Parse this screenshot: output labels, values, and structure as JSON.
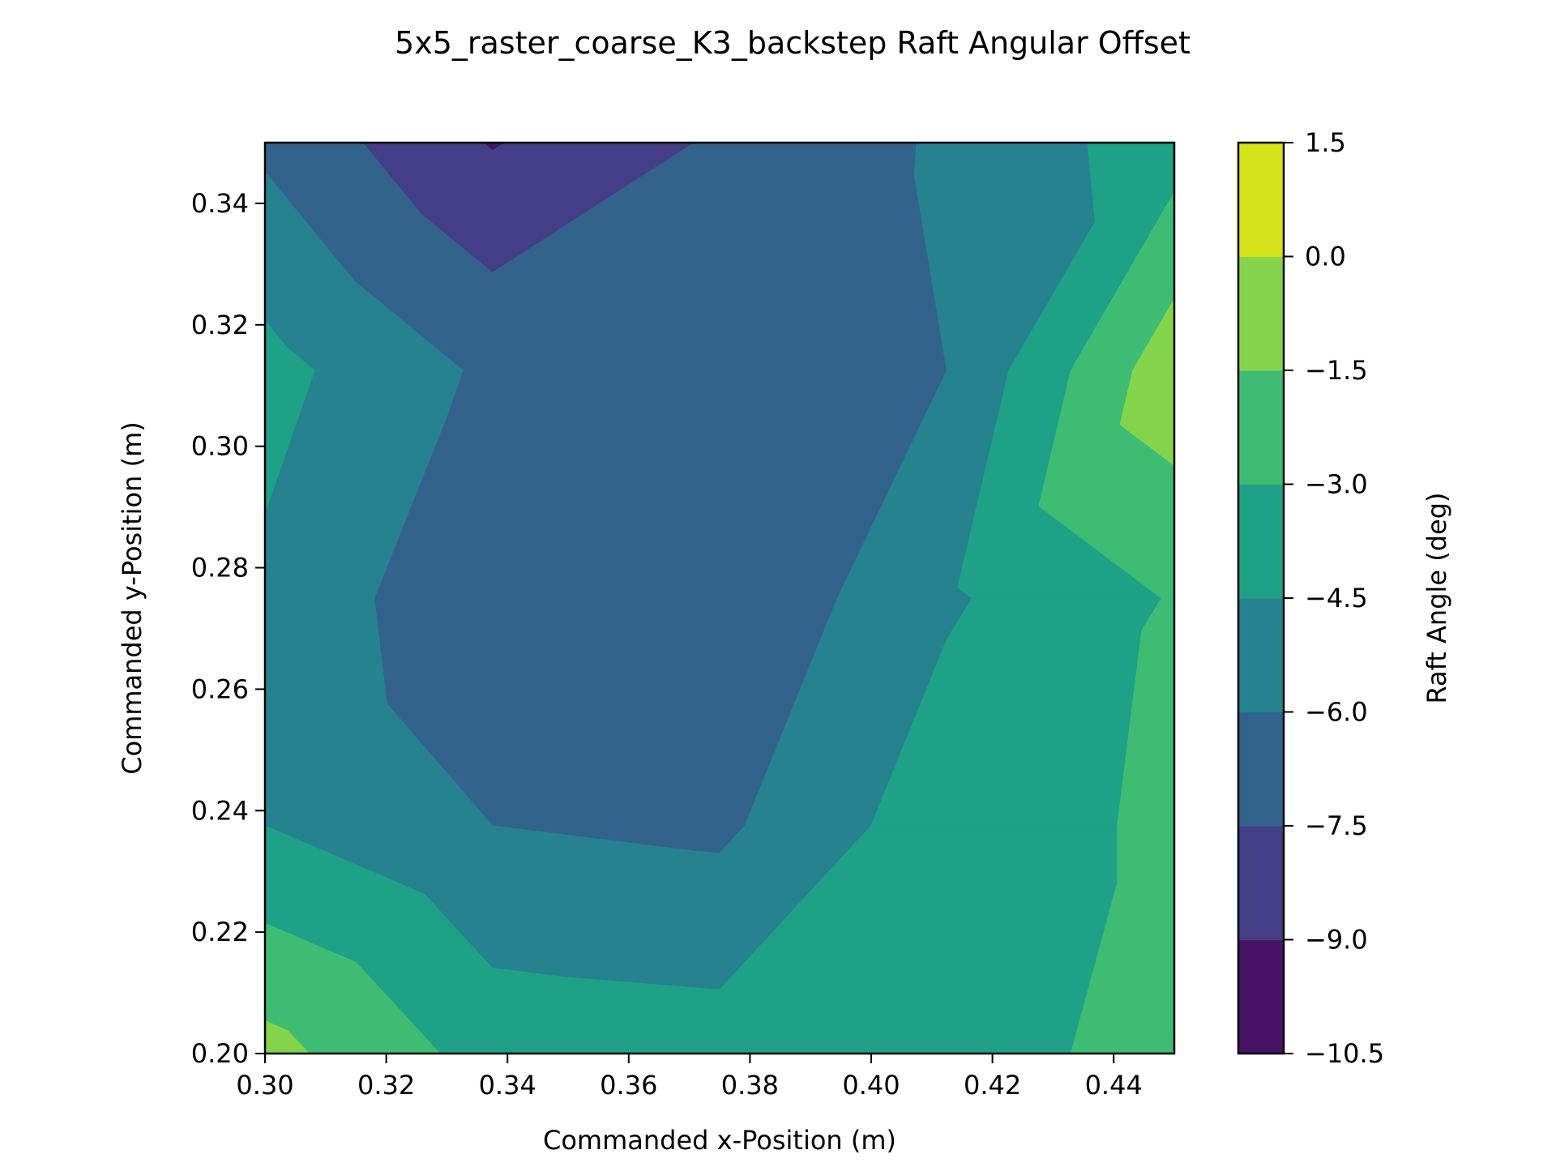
{
  "chart_data": {
    "type": "heatmap",
    "subtype": "filled-contour",
    "title": "5x5_raster_coarse_K3_backstep Raft Angular Offset",
    "xlabel": "Commanded x-Position (m)",
    "ylabel": "Commanded y-Position (m)",
    "colorbar_label": "Raft Angle (deg)",
    "xlim": [
      0.3,
      0.45
    ],
    "ylim": [
      0.2,
      0.35
    ],
    "x_ticks": [
      "0.30",
      "0.32",
      "0.34",
      "0.36",
      "0.38",
      "0.40",
      "0.42",
      "0.44"
    ],
    "y_ticks": [
      "0.20",
      "0.22",
      "0.24",
      "0.26",
      "0.28",
      "0.30",
      "0.32",
      "0.34"
    ],
    "x": [
      0.3,
      0.3375,
      0.375,
      0.4125,
      0.45
    ],
    "y": [
      0.2,
      0.2375,
      0.275,
      0.3125,
      0.35
    ],
    "z": [
      [
        -1.0,
        -3.6,
        -3.8,
        -3.6,
        -2.5
      ],
      [
        -4.5,
        -6.0,
        -6.3,
        -3.6,
        -2.8
      ],
      [
        -4.8,
        -7.3,
        -7.4,
        -4.7,
        -2.9
      ],
      [
        -4.0,
        -6.3,
        -7.2,
        -6.0,
        -0.5
      ],
      [
        -6.3,
        -9.1,
        -7.3,
        -5.8,
        -3.7
      ]
    ],
    "contour_levels": [
      -10.5,
      -9.0,
      -7.5,
      -6.0,
      -4.5,
      -3.0,
      -1.5,
      0.0,
      1.5
    ],
    "colorbar_ticks": [
      "1.5",
      "0.0",
      "−1.5",
      "−3.0",
      "−4.5",
      "−6.0",
      "−7.5",
      "−9.0",
      "−10.5"
    ],
    "band_colors": [
      "#471365",
      "#433e85",
      "#33638d",
      "#26828e",
      "#1fa187",
      "#3fbc73",
      "#84d44b",
      "#d5e21a"
    ],
    "colormap": "viridis"
  }
}
